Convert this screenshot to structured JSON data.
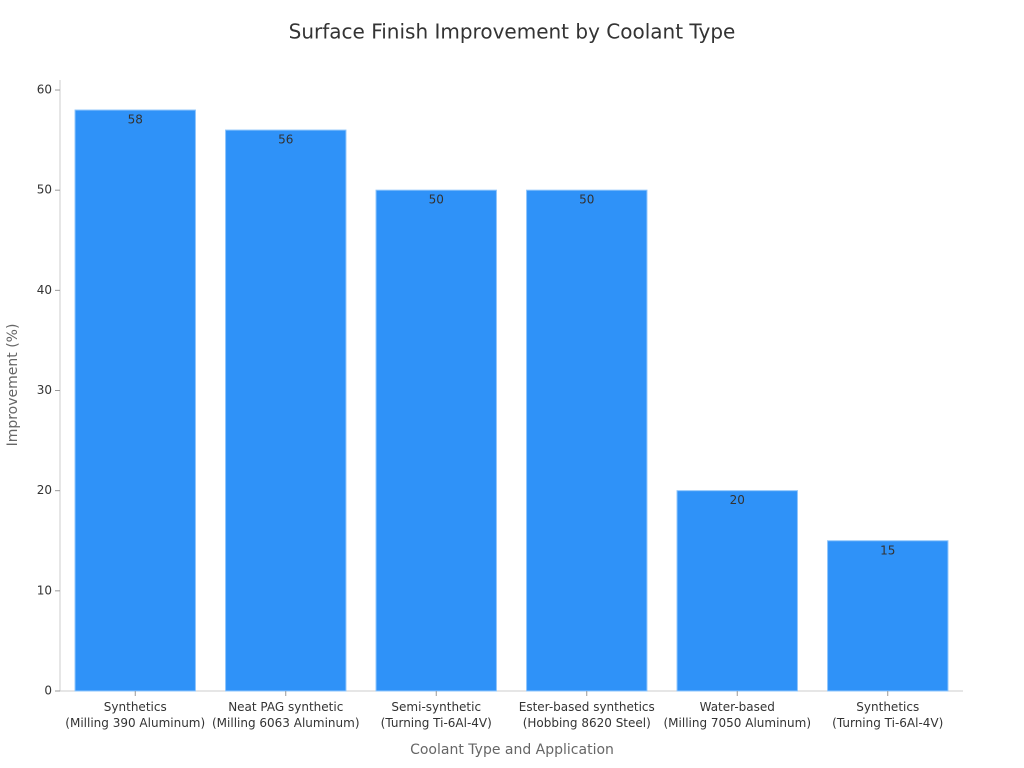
{
  "chart_data": {
    "type": "bar",
    "title": "Surface Finish Improvement by Coolant Type",
    "x_label": "Coolant Type and Application",
    "y_label": "Improvement (%)",
    "categories": [
      "Synthetics\n(Milling 390 Aluminum)",
      "Neat PAG synthetic\n(Milling 6063 Aluminum)",
      "Semi-synthetic\n(Turning Ti-6Al-4V)",
      "Ester-based synthetics\n(Hobbing 8620 Steel)",
      "Water-based\n(Milling 7050 Aluminum)",
      "Synthetics\n(Turning Ti-6Al-4V)"
    ],
    "values": [
      58,
      56,
      50,
      50,
      20,
      15
    ],
    "color": "#2f92f8",
    "ylim": [
      0,
      61
    ],
    "yticks": [
      0,
      10,
      20,
      30,
      40,
      50,
      60
    ],
    "grid": false
  }
}
